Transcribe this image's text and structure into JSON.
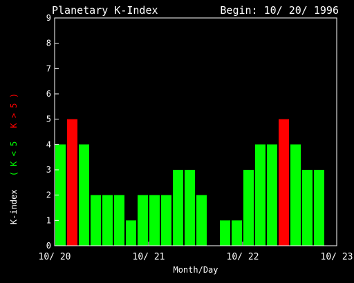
{
  "chart_data": {
    "type": "bar",
    "title": "Planetary K-Index",
    "subtitle": "Begin: 10/ 20/ 1996",
    "xlabel": "Month/Day",
    "ylabel": "K-index",
    "ylabel_legend": [
      {
        "text": "( K < 5",
        "color": "#00ff00"
      },
      {
        "text": "K > 5 )",
        "color": "#ff0000"
      }
    ],
    "ylim": [
      0,
      9
    ],
    "yticks": [
      "0",
      "1",
      "2",
      "3",
      "4",
      "5",
      "6",
      "7",
      "8",
      "9"
    ],
    "xlim": [
      0,
      24
    ],
    "xticks": [
      {
        "pos": 0,
        "label": "10/ 20"
      },
      {
        "pos": 8,
        "label": "10/ 21"
      },
      {
        "pos": 16,
        "label": "10/ 22"
      },
      {
        "pos": 24,
        "label": "10/ 23"
      }
    ],
    "grid": false,
    "values": [
      4,
      5,
      4,
      2,
      2,
      2,
      1,
      2,
      2,
      2,
      3,
      3,
      2,
      null,
      1,
      1,
      3,
      4,
      4,
      5,
      4,
      3,
      3,
      null
    ],
    "colors": {
      "normal": "#00ff00",
      "storm": "#ff0000",
      "axis": "#ffffff",
      "background": "#000000"
    },
    "storm_threshold": 5
  }
}
